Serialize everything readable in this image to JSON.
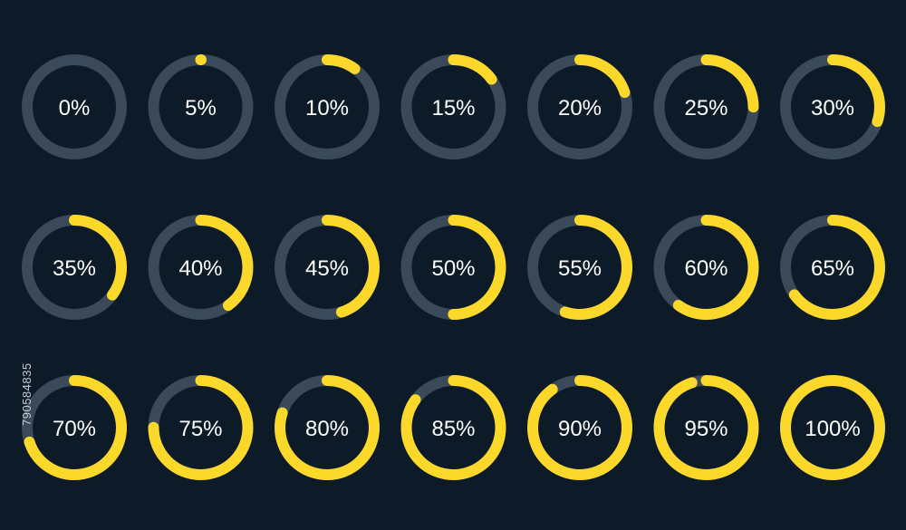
{
  "colors": {
    "background": "#0d1b28",
    "track": "#3a4a5a",
    "progress": "#fcd82a",
    "label": "#ffffff"
  },
  "stock_id": "790584835",
  "gauges": [
    {
      "label": "0%",
      "value": 0
    },
    {
      "label": "5%",
      "value": 0.05
    },
    {
      "label": "10%",
      "value": 0.1
    },
    {
      "label": "15%",
      "value": 0.15
    },
    {
      "label": "20%",
      "value": 0.2
    },
    {
      "label": "25%",
      "value": 0.25
    },
    {
      "label": "30%",
      "value": 0.3
    },
    {
      "label": "35%",
      "value": 0.35
    },
    {
      "label": "40%",
      "value": 0.4
    },
    {
      "label": "45%",
      "value": 0.45
    },
    {
      "label": "50%",
      "value": 0.5
    },
    {
      "label": "55%",
      "value": 0.55
    },
    {
      "label": "60%",
      "value": 0.6
    },
    {
      "label": "65%",
      "value": 0.65
    },
    {
      "label": "70%",
      "value": 0.7
    },
    {
      "label": "75%",
      "value": 0.75
    },
    {
      "label": "80%",
      "value": 0.8
    },
    {
      "label": "85%",
      "value": 0.85
    },
    {
      "label": "90%",
      "value": 0.9
    },
    {
      "label": "95%",
      "value": 0.95
    },
    {
      "label": "100%",
      "value": 1.0
    }
  ]
}
